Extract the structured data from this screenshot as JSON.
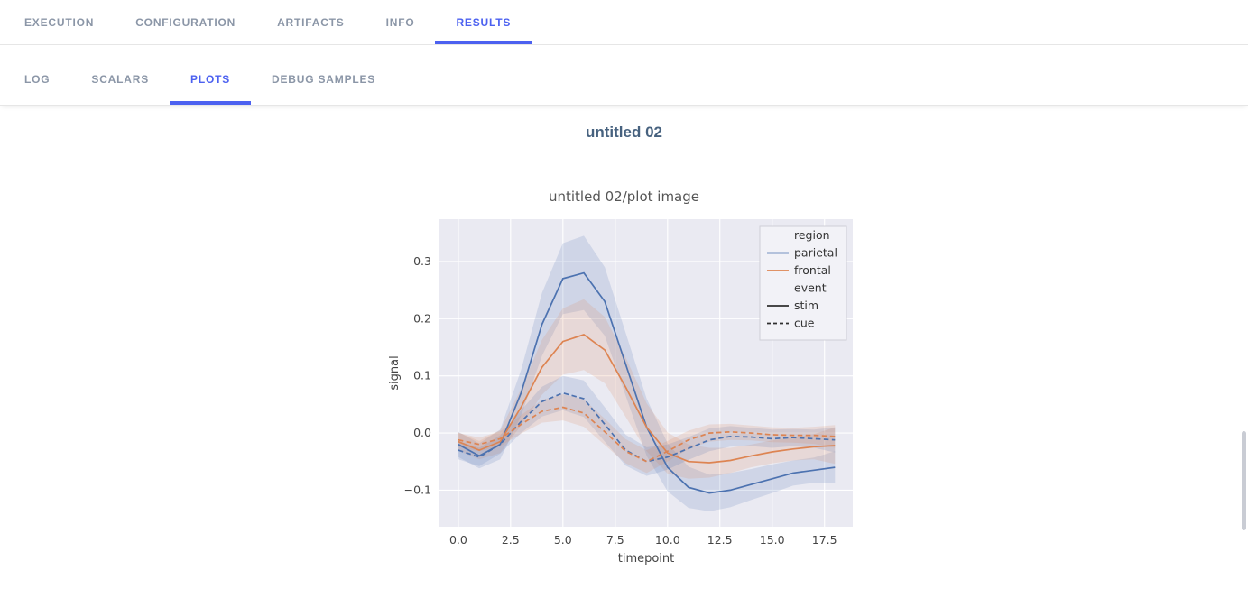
{
  "tabs_primary": {
    "items": [
      {
        "label": "EXECUTION",
        "active": false
      },
      {
        "label": "CONFIGURATION",
        "active": false
      },
      {
        "label": "ARTIFACTS",
        "active": false
      },
      {
        "label": "INFO",
        "active": false
      },
      {
        "label": "RESULTS",
        "active": true
      }
    ]
  },
  "tabs_secondary": {
    "items": [
      {
        "label": "LOG",
        "active": false
      },
      {
        "label": "SCALARS",
        "active": false
      },
      {
        "label": "PLOTS",
        "active": true
      },
      {
        "label": "DEBUG SAMPLES",
        "active": false
      }
    ]
  },
  "content": {
    "section_title": "untitled 02"
  },
  "colors": {
    "accent": "#4c61f0",
    "tab_inactive": "#8b96a7",
    "section_title": "#47627f"
  },
  "chart_data": {
    "type": "line",
    "title": "untitled 02/plot image",
    "xlabel": "timepoint",
    "ylabel": "signal",
    "xlim": [
      -0.9,
      18.85
    ],
    "ylim": [
      -0.164,
      0.374
    ],
    "xticks": [
      0.0,
      2.5,
      5.0,
      7.5,
      10.0,
      12.5,
      15.0,
      17.5
    ],
    "yticks": [
      -0.1,
      0.0,
      0.1,
      0.2,
      0.3
    ],
    "grid": true,
    "plot_bg": "#eaeaf2",
    "grid_color": "#ffffff",
    "x": [
      0,
      1,
      2,
      3,
      4,
      5,
      6,
      7,
      8,
      9,
      10,
      11,
      12,
      13,
      14,
      15,
      16,
      17,
      18
    ],
    "series": [
      {
        "name": "parietal-stim",
        "region": "parietal",
        "event": "stim",
        "color": "#4c72b0",
        "dash": false,
        "values": [
          -0.02,
          -0.04,
          -0.02,
          0.07,
          0.19,
          0.27,
          0.28,
          0.23,
          0.12,
          0.01,
          -0.06,
          -0.095,
          -0.105,
          -0.1,
          -0.09,
          -0.08,
          -0.07,
          -0.065,
          -0.06
        ],
        "err": [
          0.022,
          0.022,
          0.026,
          0.04,
          0.055,
          0.062,
          0.065,
          0.06,
          0.055,
          0.05,
          0.042,
          0.036,
          0.032,
          0.03,
          0.027,
          0.025,
          0.022,
          0.022,
          0.028
        ]
      },
      {
        "name": "frontal-stim",
        "region": "frontal",
        "event": "stim",
        "color": "#dd8452",
        "dash": false,
        "values": [
          -0.015,
          -0.03,
          -0.015,
          0.045,
          0.115,
          0.16,
          0.172,
          0.145,
          0.08,
          0.01,
          -0.035,
          -0.05,
          -0.052,
          -0.048,
          -0.04,
          -0.033,
          -0.028,
          -0.024,
          -0.022
        ],
        "err": [
          0.016,
          0.016,
          0.02,
          0.032,
          0.048,
          0.058,
          0.062,
          0.058,
          0.052,
          0.042,
          0.036,
          0.03,
          0.026,
          0.022,
          0.02,
          0.02,
          0.02,
          0.022,
          0.032
        ]
      },
      {
        "name": "parietal-cue",
        "region": "parietal",
        "event": "cue",
        "color": "#4c72b0",
        "dash": true,
        "values": [
          -0.03,
          -0.042,
          -0.02,
          0.02,
          0.055,
          0.07,
          0.06,
          0.015,
          -0.03,
          -0.05,
          -0.042,
          -0.027,
          -0.012,
          -0.006,
          -0.007,
          -0.01,
          -0.008,
          -0.01,
          -0.012
        ],
        "err": [
          0.016,
          0.016,
          0.016,
          0.02,
          0.026,
          0.03,
          0.032,
          0.03,
          0.027,
          0.025,
          0.022,
          0.02,
          0.02,
          0.018,
          0.016,
          0.016,
          0.015,
          0.016,
          0.022
        ]
      },
      {
        "name": "frontal-cue",
        "region": "frontal",
        "event": "cue",
        "color": "#dd8452",
        "dash": true,
        "values": [
          -0.012,
          -0.02,
          -0.01,
          0.015,
          0.038,
          0.045,
          0.035,
          0.002,
          -0.032,
          -0.05,
          -0.032,
          -0.012,
          0.0,
          0.002,
          0.0,
          -0.003,
          -0.004,
          -0.004,
          -0.006
        ],
        "err": [
          0.012,
          0.012,
          0.013,
          0.016,
          0.02,
          0.023,
          0.024,
          0.023,
          0.021,
          0.02,
          0.018,
          0.016,
          0.015,
          0.014,
          0.013,
          0.013,
          0.013,
          0.015,
          0.02
        ]
      }
    ],
    "legend": {
      "position": "upper right",
      "entries": [
        {
          "label": "region",
          "type": "title"
        },
        {
          "label": "parietal",
          "type": "line",
          "color": "#4c72b0",
          "dash": false
        },
        {
          "label": "frontal",
          "type": "line",
          "color": "#dd8452",
          "dash": false
        },
        {
          "label": "event",
          "type": "title"
        },
        {
          "label": "stim",
          "type": "line",
          "color": "#2f2f2f",
          "dash": false
        },
        {
          "label": "cue",
          "type": "line",
          "color": "#2f2f2f",
          "dash": true
        }
      ]
    }
  }
}
